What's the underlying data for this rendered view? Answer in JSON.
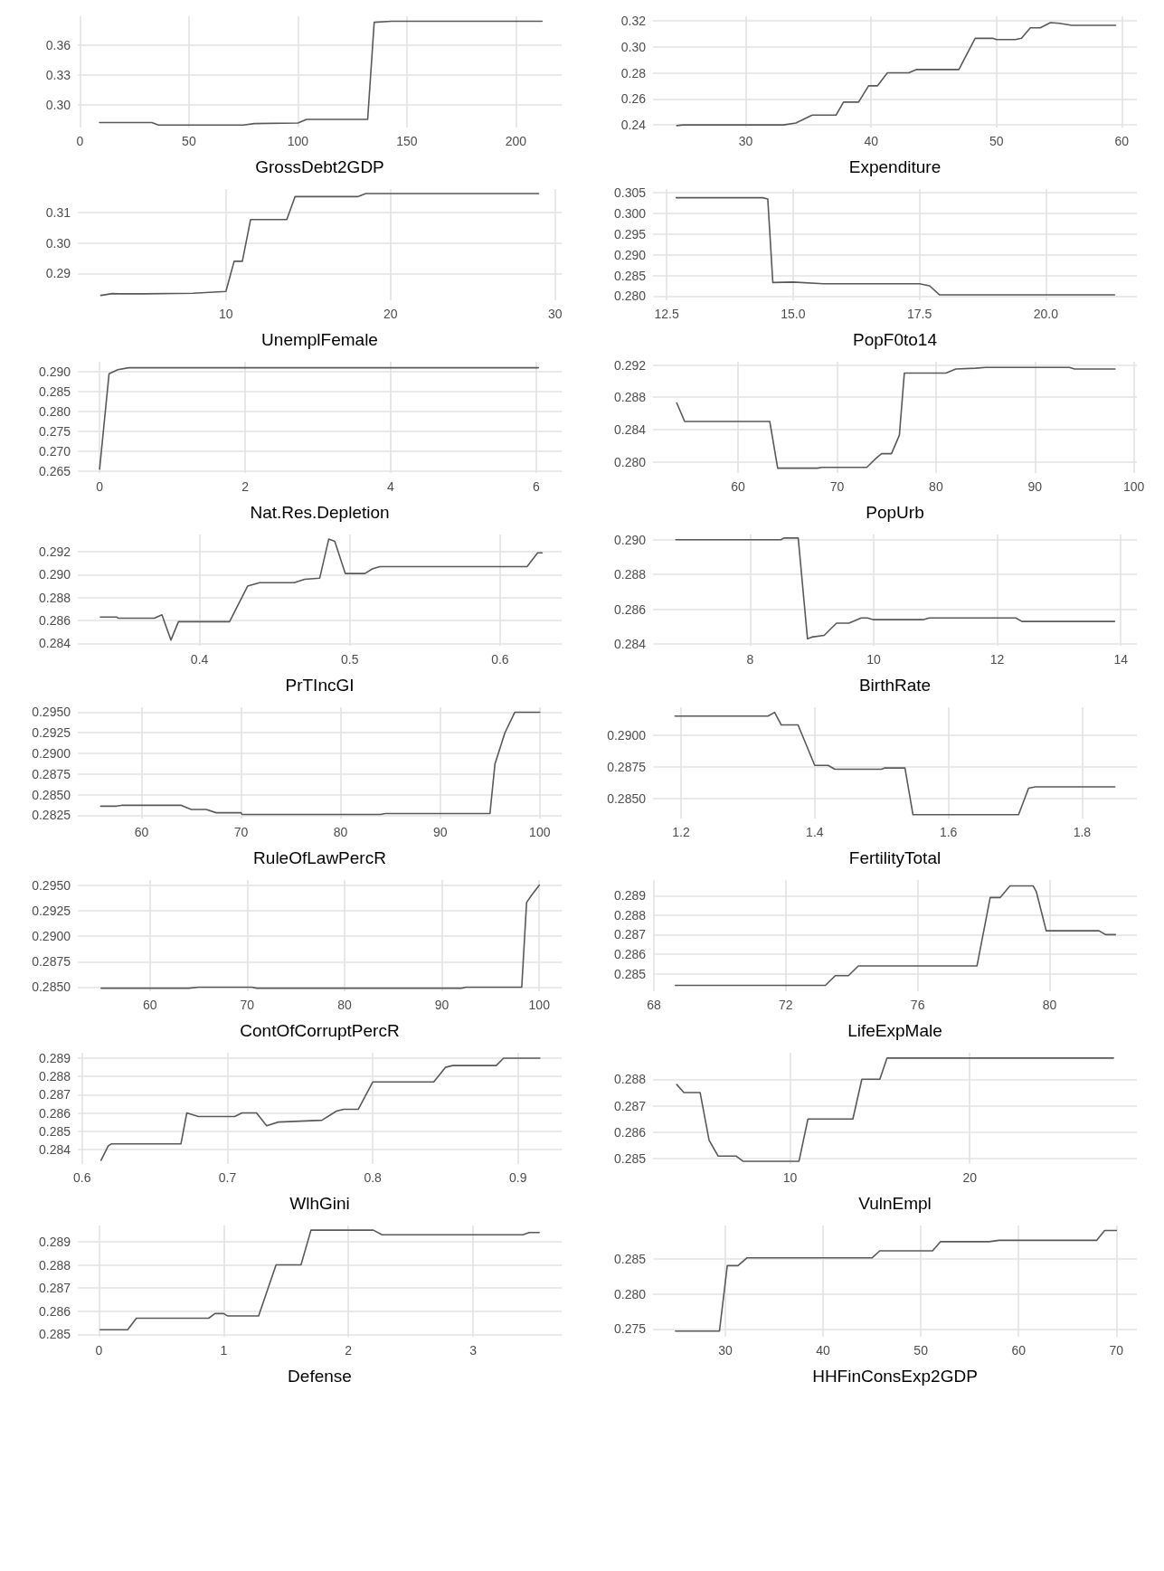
{
  "chart_data": [
    {
      "type": "line",
      "xlabel": "GrossDebt2GDP",
      "x": [
        9,
        33,
        36,
        75,
        80,
        100,
        104,
        132,
        135,
        143,
        212
      ],
      "values": [
        0.2825,
        0.2825,
        0.28,
        0.28,
        0.2815,
        0.282,
        0.2857,
        0.2857,
        0.383,
        0.384,
        0.384
      ],
      "color": "#595959",
      "xlim": [
        -1,
        221
      ],
      "xticks": [
        0,
        50,
        100,
        150,
        200
      ],
      "ylim": [
        0.2775,
        0.389
      ],
      "yticks": [
        {
          "value": 0.3,
          "label": "0.30"
        },
        0.33,
        0.36
      ],
      "grid": true,
      "marker": "none",
      "line_style": "solid"
    },
    {
      "type": "line",
      "xlabel": "Expenditure",
      "x": [
        24.5,
        25,
        33,
        34,
        35.3,
        37.2,
        37.8,
        39,
        39.8,
        40.5,
        41.3,
        43,
        43.6,
        47,
        48.3,
        49.7,
        50,
        51.5,
        52,
        52.7,
        53.5,
        54.3,
        55,
        56,
        59.5
      ],
      "values": [
        0.2395,
        0.24,
        0.24,
        0.2415,
        0.2475,
        0.2475,
        0.2575,
        0.2575,
        0.27,
        0.27,
        0.28,
        0.28,
        0.2825,
        0.2825,
        0.3065,
        0.3065,
        0.3055,
        0.3055,
        0.3065,
        0.3145,
        0.3145,
        0.3185,
        0.318,
        0.3165,
        0.3165
      ],
      "color": "#595959",
      "xlim": [
        22.6,
        61.2
      ],
      "xticks": [
        30,
        40,
        50,
        60
      ],
      "ylim": [
        0.238,
        0.3234
      ],
      "yticks": [
        0.24,
        0.26,
        0.28,
        {
          "value": 0.3,
          "label": "0.30"
        },
        0.32
      ],
      "grid": true,
      "marker": "none",
      "line_style": "solid"
    },
    {
      "type": "line",
      "xlabel": "UnemplFemale",
      "x": [
        2.4,
        3.1,
        3.5,
        5,
        8,
        10,
        10.5,
        11,
        11.5,
        13.7,
        14.2,
        18,
        18.5,
        29
      ],
      "values": [
        0.2828,
        0.2834,
        0.2833,
        0.2833,
        0.2835,
        0.2841,
        0.294,
        0.294,
        0.3077,
        0.3077,
        0.3152,
        0.3152,
        0.3162,
        0.3162
      ],
      "color": "#595959",
      "xlim": [
        1,
        30.4
      ],
      "xticks": [
        10,
        20,
        30
      ],
      "ylim": [
        0.2812,
        0.3177
      ],
      "yticks": [
        0.29,
        {
          "value": 0.3,
          "label": "0.30"
        },
        0.31
      ],
      "grid": true,
      "marker": "none",
      "line_style": "solid"
    },
    {
      "type": "line",
      "xlabel": "PopF0to14",
      "x": [
        12.69,
        14.4,
        14.5,
        14.6,
        15,
        15.6,
        17.5,
        17.7,
        17.9,
        21.36
      ],
      "values": [
        0.3038,
        0.3038,
        0.3035,
        0.2833,
        0.2834,
        0.283,
        0.283,
        0.2825,
        0.2803,
        0.2803
      ],
      "color": "#595959",
      "xlim": [
        12.23,
        21.8
      ],
      "xticks": [
        12.5,
        {
          "value": 15,
          "label": "15.0"
        },
        17.5,
        {
          "value": 20,
          "label": "20.0"
        }
      ],
      "ylim": [
        0.279,
        0.3059
      ],
      "yticks": [
        {
          "value": 0.28,
          "label": "0.280"
        },
        0.285,
        {
          "value": 0.29,
          "label": "0.290"
        },
        0.295,
        {
          "value": 0.3,
          "label": "0.300"
        },
        0.305
      ],
      "grid": true,
      "marker": "none",
      "line_style": "solid"
    },
    {
      "type": "line",
      "xlabel": "Nat.Res.Depletion",
      "x": [
        0,
        0.13,
        0.25,
        0.4,
        6.03
      ],
      "values": [
        0.2655,
        0.2895,
        0.2905,
        0.291,
        0.291
      ],
      "color": "#595959",
      "xlim": [
        -0.3,
        6.35
      ],
      "xticks": [
        0,
        2,
        4,
        6
      ],
      "ylim": [
        0.2645,
        0.2925
      ],
      "yticks": [
        0.265,
        {
          "value": 0.27,
          "label": "0.270"
        },
        0.275,
        {
          "value": 0.28,
          "label": "0.280"
        },
        0.285,
        {
          "value": 0.29,
          "label": "0.290"
        }
      ],
      "grid": true,
      "marker": "none",
      "line_style": "solid"
    },
    {
      "type": "line",
      "xlabel": "PopUrb",
      "x": [
        53.8,
        54.6,
        63.2,
        64,
        68,
        68.5,
        73,
        74,
        74.5,
        75.5,
        76.3,
        76.8,
        81,
        82,
        84,
        85,
        93.5,
        94,
        98.1
      ],
      "values": [
        0.2873,
        0.285,
        0.285,
        0.2792,
        0.2792,
        0.2793,
        0.2793,
        0.2805,
        0.281,
        0.281,
        0.2833,
        0.291,
        0.291,
        0.2915,
        0.2916,
        0.2917,
        0.2917,
        0.2915,
        0.2915
      ],
      "color": "#595959",
      "xlim": [
        51.4,
        100.3
      ],
      "xticks": [
        60,
        70,
        80,
        90,
        100
      ],
      "ylim": [
        0.2786,
        0.2924
      ],
      "yticks": [
        {
          "value": 0.28,
          "label": "0.280"
        },
        0.284,
        0.288,
        0.292
      ],
      "grid": true,
      "marker": "none",
      "line_style": "solid"
    },
    {
      "type": "line",
      "xlabel": "PrTIncGI",
      "x": [
        0.334,
        0.345,
        0.346,
        0.37,
        0.375,
        0.381,
        0.386,
        0.4,
        0.42,
        0.432,
        0.44,
        0.463,
        0.47,
        0.48,
        0.486,
        0.49,
        0.497,
        0.51,
        0.515,
        0.52,
        0.618,
        0.625,
        0.628
      ],
      "values": [
        0.2863,
        0.2863,
        0.2862,
        0.2862,
        0.2865,
        0.2843,
        0.2859,
        0.2859,
        0.2859,
        0.289,
        0.2893,
        0.2893,
        0.2896,
        0.2897,
        0.2931,
        0.2929,
        0.2901,
        0.2901,
        0.2905,
        0.2907,
        0.2907,
        0.2919,
        0.2919
      ],
      "color": "#595959",
      "xlim": [
        0.319,
        0.641
      ],
      "xticks": [
        0.4,
        0.5,
        0.6
      ],
      "ylim": [
        0.2838,
        0.2935
      ],
      "yticks": [
        0.284,
        0.286,
        0.288,
        {
          "value": 0.29,
          "label": "0.290"
        },
        0.292
      ],
      "grid": true,
      "marker": "none",
      "line_style": "solid"
    },
    {
      "type": "line",
      "xlabel": "BirthRate",
      "x": [
        6.8,
        8.5,
        8.55,
        8.78,
        8.93,
        9,
        9.2,
        9.4,
        9.6,
        9.8,
        9.9,
        10,
        10.8,
        10.9,
        12.3,
        12.4,
        13.9
      ],
      "values": [
        0.29,
        0.29,
        0.2901,
        0.2901,
        0.2843,
        0.2844,
        0.2845,
        0.2852,
        0.2852,
        0.2855,
        0.2855,
        0.2854,
        0.2854,
        0.2855,
        0.2855,
        0.2853,
        0.2853
      ],
      "color": "#595959",
      "xlim": [
        6.43,
        14.26
      ],
      "xticks": [
        8,
        10,
        12,
        14
      ],
      "ylim": [
        0.2839,
        0.2903
      ],
      "yticks": [
        0.284,
        0.286,
        0.288,
        {
          "value": 0.29,
          "label": "0.290"
        }
      ],
      "grid": true,
      "marker": "none",
      "line_style": "solid"
    },
    {
      "type": "line",
      "xlabel": "RuleOfLawPercR",
      "x": [
        55.9,
        57.5,
        58,
        64,
        65,
        66.5,
        67.5,
        70,
        70.1,
        84,
        84.5,
        95,
        95.5,
        96.5,
        97.5,
        100
      ],
      "values": [
        0.2836,
        0.2836,
        0.2837,
        0.2837,
        0.2832,
        0.2832,
        0.2828,
        0.2828,
        0.2826,
        0.2826,
        0.2827,
        0.2827,
        0.2887,
        0.2925,
        0.295,
        0.295
      ],
      "color": "#595959",
      "xlim": [
        53.6,
        102.2
      ],
      "xticks": [
        60,
        70,
        80,
        90,
        100
      ],
      "ylim": [
        0.2821,
        0.2956
      ],
      "yticks": [
        0.2825,
        {
          "value": 0.285,
          "label": "0.2850"
        },
        0.2875,
        {
          "value": 0.29,
          "label": "0.2900"
        },
        0.2925,
        {
          "value": 0.295,
          "label": "0.2950"
        }
      ],
      "grid": true,
      "marker": "none",
      "line_style": "solid"
    },
    {
      "type": "line",
      "xlabel": "FertilityTotal",
      "x": [
        1.191,
        1.33,
        1.34,
        1.35,
        1.375,
        1.4,
        1.42,
        1.43,
        1.5,
        1.505,
        1.535,
        1.547,
        1.705,
        1.72,
        1.73,
        1.849
      ],
      "values": [
        0.2915,
        0.2915,
        0.2918,
        0.2908,
        0.2908,
        0.2876,
        0.2876,
        0.2873,
        0.2873,
        0.2874,
        0.2874,
        0.2837,
        0.2837,
        0.2858,
        0.2859,
        0.2859
      ],
      "color": "#595959",
      "xlim": [
        1.158,
        1.882
      ],
      "xticks": [
        1.2,
        1.4,
        1.6,
        1.8
      ],
      "ylim": [
        0.2834,
        0.2922
      ],
      "yticks": [
        {
          "value": 0.285,
          "label": "0.2850"
        },
        0.2875,
        {
          "value": 0.29,
          "label": "0.2900"
        }
      ],
      "grid": true,
      "marker": "none",
      "line_style": "solid"
    },
    {
      "type": "line",
      "xlabel": "ContOfCorruptPercR",
      "x": [
        55,
        64,
        65,
        70.5,
        71,
        92,
        92.5,
        98.2,
        98.7,
        99.2,
        100
      ],
      "values": [
        0.2849,
        0.2849,
        0.285,
        0.285,
        0.2849,
        0.2849,
        0.285,
        0.285,
        0.2933,
        0.294,
        0.295
      ],
      "color": "#595959",
      "xlim": [
        52.6,
        102.3
      ],
      "xticks": [
        60,
        70,
        80,
        90,
        100
      ],
      "ylim": [
        0.2846,
        0.2955
      ],
      "yticks": [
        {
          "value": 0.285,
          "label": "0.2850"
        },
        0.2875,
        {
          "value": 0.29,
          "label": "0.2900"
        },
        0.2925,
        {
          "value": 0.295,
          "label": "0.2950"
        }
      ],
      "grid": true,
      "marker": "none",
      "line_style": "solid"
    },
    {
      "type": "line",
      "xlabel": "LifeExpMale",
      "x": [
        68.65,
        73.2,
        73.5,
        73.9,
        74.2,
        77.8,
        78.2,
        78.5,
        78.8,
        79.5,
        79.6,
        79.9,
        81.5,
        81.7,
        82
      ],
      "values": [
        0.2844,
        0.2844,
        0.2849,
        0.2849,
        0.2854,
        0.2854,
        0.2889,
        0.2889,
        0.2895,
        0.2895,
        0.2892,
        0.2872,
        0.2872,
        0.287,
        0.287
      ],
      "color": "#595959",
      "xlim": [
        67.97,
        82.65
      ],
      "xticks": [
        68,
        72,
        76,
        80
      ],
      "ylim": [
        0.2841,
        0.2898
      ],
      "yticks": [
        0.285,
        0.286,
        0.287,
        0.288,
        0.289
      ],
      "grid": true,
      "marker": "none",
      "line_style": "solid"
    },
    {
      "type": "line",
      "xlabel": "WlhGini",
      "x": [
        0.613,
        0.618,
        0.62,
        0.668,
        0.672,
        0.68,
        0.705,
        0.71,
        0.72,
        0.727,
        0.735,
        0.765,
        0.775,
        0.78,
        0.79,
        0.8,
        0.842,
        0.85,
        0.855,
        0.885,
        0.89,
        0.915
      ],
      "values": [
        0.2834,
        0.2842,
        0.2843,
        0.2843,
        0.286,
        0.2858,
        0.2858,
        0.286,
        0.286,
        0.2853,
        0.2855,
        0.2856,
        0.2861,
        0.2862,
        0.2862,
        0.2877,
        0.2877,
        0.2885,
        0.2886,
        0.2886,
        0.289,
        0.289
      ],
      "color": "#595959",
      "xlim": [
        0.597,
        0.93
      ],
      "xticks": [
        0.6,
        0.7,
        0.8,
        0.9
      ],
      "ylim": [
        0.2832,
        0.2893
      ],
      "yticks": [
        0.284,
        0.285,
        0.286,
        0.287,
        0.288,
        0.289
      ],
      "grid": true,
      "marker": "none",
      "line_style": "solid"
    },
    {
      "type": "line",
      "xlabel": "VulnEmpl",
      "x": [
        3.7,
        4.1,
        5,
        5.5,
        6,
        7,
        7.4,
        10.5,
        11,
        13.5,
        14,
        15,
        15.4,
        28
      ],
      "values": [
        0.2878,
        0.2875,
        0.2875,
        0.2857,
        0.2851,
        0.2851,
        0.2849,
        0.2849,
        0.2865,
        0.2865,
        0.288,
        0.288,
        0.2888,
        0.2888
      ],
      "color": "#595959",
      "xlim": [
        2.38,
        29.3
      ],
      "xticks": [
        10,
        20
      ],
      "ylim": [
        0.2848,
        0.289
      ],
      "yticks": [
        0.285,
        0.286,
        0.287,
        0.288
      ],
      "grid": true,
      "marker": "none",
      "line_style": "solid"
    },
    {
      "type": "line",
      "xlabel": "Defense",
      "x": [
        0.01,
        0.23,
        0.3,
        0.88,
        0.93,
        1,
        1.03,
        1.28,
        1.42,
        1.62,
        1.7,
        2.2,
        2.27,
        3.4,
        3.45,
        3.53
      ],
      "values": [
        0.2852,
        0.2852,
        0.2857,
        0.2857,
        0.2859,
        0.2859,
        0.2858,
        0.2858,
        0.288,
        0.288,
        0.2895,
        0.2895,
        0.2893,
        0.2893,
        0.2894,
        0.2894
      ],
      "color": "#595959",
      "xlim": [
        -0.17,
        3.71
      ],
      "xticks": [
        0,
        1,
        2,
        3
      ],
      "ylim": [
        0.2849,
        0.2897
      ],
      "yticks": [
        0.285,
        0.286,
        0.287,
        0.288,
        0.289
      ],
      "grid": true,
      "marker": "none",
      "line_style": "solid"
    },
    {
      "type": "line",
      "xlabel": "HHFinConsExp2GDP",
      "x": [
        24.9,
        29.4,
        30.2,
        31.3,
        32.2,
        45,
        45.8,
        51.2,
        52,
        57,
        58,
        68,
        68.8,
        70
      ],
      "values": [
        0.2747,
        0.2747,
        0.284,
        0.284,
        0.2851,
        0.2851,
        0.2861,
        0.2861,
        0.2874,
        0.2874,
        0.2876,
        0.2876,
        0.289,
        0.289
      ],
      "color": "#595959",
      "xlim": [
        22.6,
        72.1
      ],
      "xticks": [
        30,
        40,
        50,
        60,
        70
      ],
      "ylim": [
        0.2739,
        0.2897
      ],
      "yticks": [
        0.275,
        {
          "value": 0.28,
          "label": "0.280"
        },
        0.285
      ],
      "grid": true,
      "marker": "none",
      "line_style": "solid"
    }
  ]
}
